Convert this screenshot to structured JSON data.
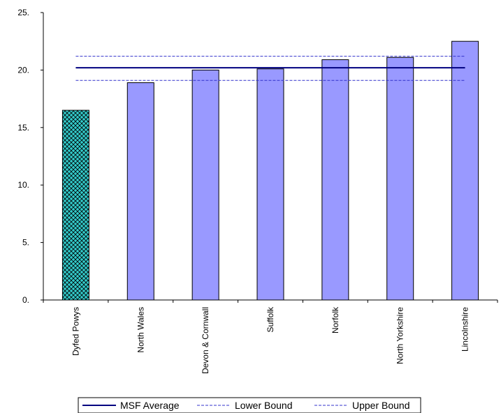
{
  "chart_data": {
    "type": "bar",
    "title": "",
    "xlabel": "",
    "ylabel": "",
    "categories": [
      "Dyfed Powys",
      "North Wales",
      "Devon & Cornwall",
      "Suffolk",
      "Norfolk",
      "North Yorkshire",
      "Lincolnshire"
    ],
    "values": [
      16.5,
      18.9,
      20.0,
      20.1,
      20.9,
      21.1,
      22.5
    ],
    "highlight_index": 0,
    "ylim": [
      0,
      25
    ],
    "yticks": [
      "0.",
      "5.",
      "10.",
      "15.",
      "20.",
      "25."
    ],
    "ytick_values": [
      0,
      5,
      10,
      15,
      20,
      25
    ],
    "grid": false,
    "reference_lines": [
      {
        "name": "MSF Average",
        "value": 20.2,
        "style": "solid",
        "color": "#000080"
      },
      {
        "name": "Lower Bound",
        "value": 19.1,
        "style": "dashed",
        "color": "#3333cc"
      },
      {
        "name": "Upper Bound",
        "value": 21.2,
        "style": "dashed",
        "color": "#3333cc"
      }
    ],
    "legend_position": "bottom",
    "colors": {
      "bar": "#9999ff",
      "highlight": "#33cccc",
      "bar_edge": "#000000"
    }
  }
}
